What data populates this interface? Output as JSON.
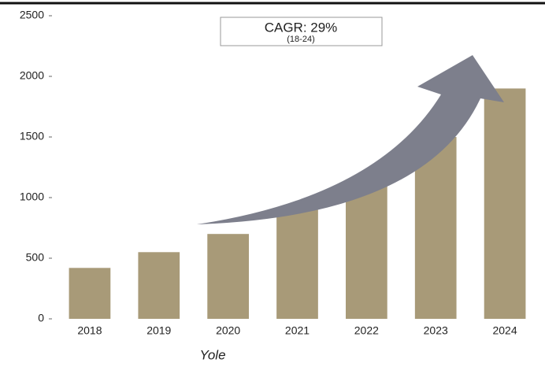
{
  "chart_data": {
    "type": "bar",
    "categories": [
      "2018",
      "2019",
      "2020",
      "2021",
      "2022",
      "2023",
      "2024"
    ],
    "values": [
      420,
      550,
      700,
      900,
      1150,
      1500,
      1900
    ],
    "color": "#a89a78",
    "ylim": [
      0,
      2500
    ],
    "yticks": [
      0,
      500,
      1000,
      1500,
      2000,
      2500
    ],
    "annotation": "CAGR: 29%",
    "annotation_period": "(18-24)",
    "source": "Yole"
  }
}
